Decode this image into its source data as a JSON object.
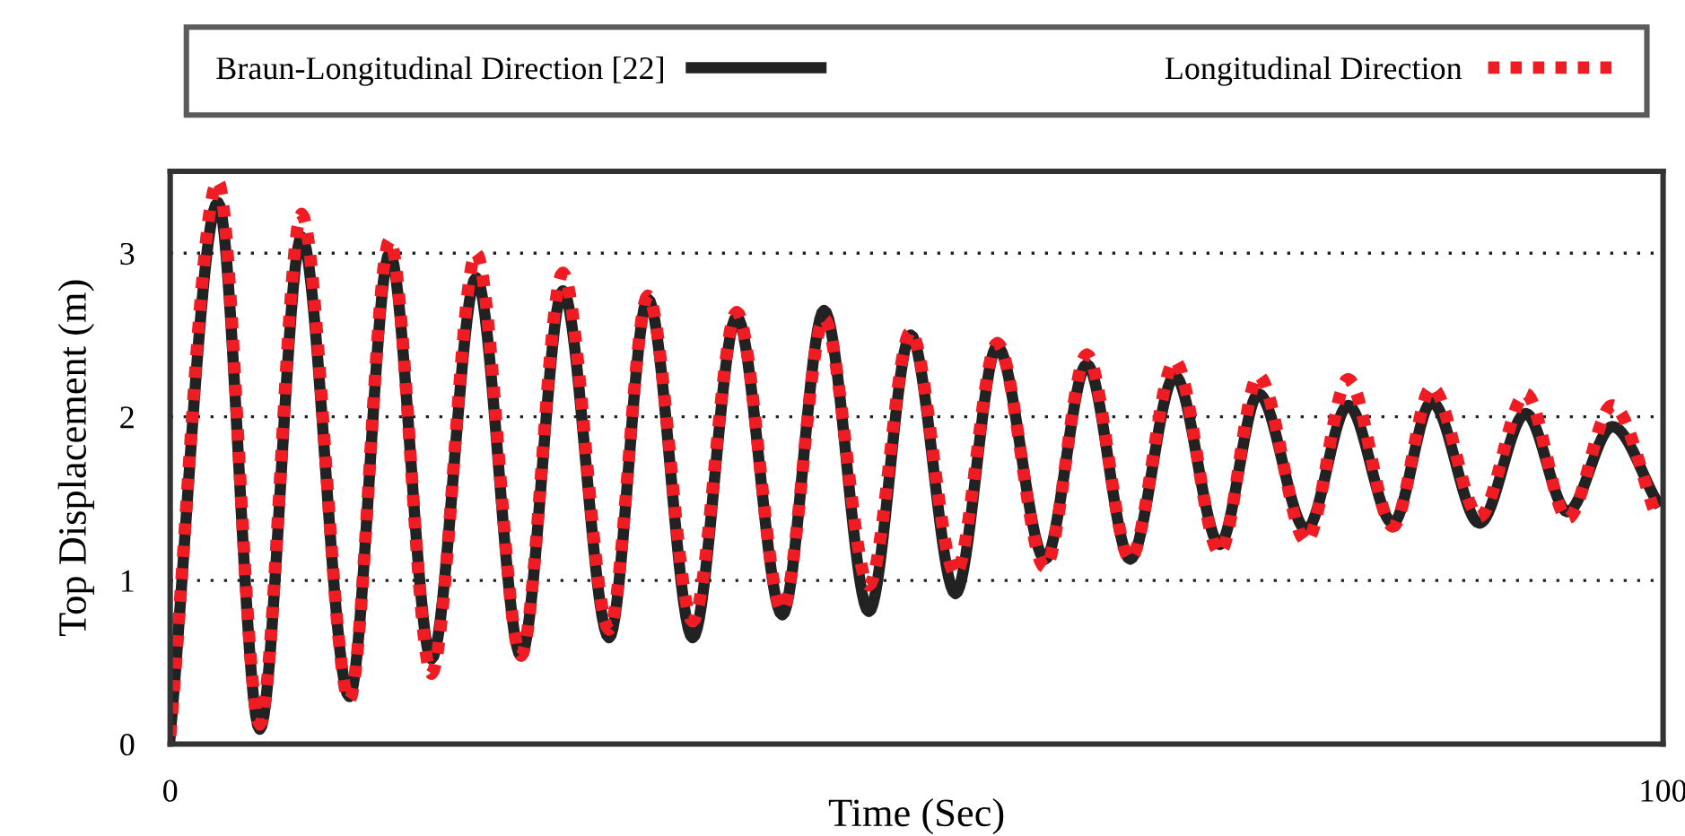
{
  "chart_data": {
    "type": "line",
    "xlabel": "Time (Sec)",
    "ylabel": "Top Displacement (m)",
    "x": [
      0,
      3.2,
      6.0,
      8.8,
      12.0,
      14.7,
      17.5,
      20.5,
      23.5,
      26.3,
      29.4,
      32.0,
      35.0,
      37.95,
      41.0,
      43.8,
      46.8,
      49.6,
      52.6,
      55.4,
      58.6,
      61.4,
      64.3,
      67.3,
      70.3,
      72.9,
      76.1,
      78.9,
      81.9,
      84.5,
      87.7,
      90.8,
      93.6,
      96.6,
      99.6
    ],
    "series": [
      {
        "name": "Braun-Longitudinal Direction [22]",
        "color": "#222222",
        "line_style": "solid",
        "values": [
          0.05,
          3.31,
          0.09,
          3.1,
          0.29,
          3.0,
          0.52,
          2.85,
          0.54,
          2.77,
          0.65,
          2.72,
          0.65,
          2.61,
          0.79,
          2.65,
          0.81,
          2.5,
          0.92,
          2.43,
          1.13,
          2.32,
          1.13,
          2.25,
          1.22,
          2.14,
          1.31,
          2.07,
          1.35,
          2.09,
          1.35,
          2.02,
          1.42,
          1.94,
          1.48
        ]
      },
      {
        "name": "Longitudinal Direction",
        "color": "#f01c24",
        "line_style": "dotted",
        "values": [
          0.05,
          3.44,
          0.12,
          3.24,
          0.27,
          3.08,
          0.43,
          3.0,
          0.54,
          2.88,
          0.7,
          2.74,
          0.75,
          2.64,
          0.82,
          2.6,
          0.97,
          2.52,
          1.04,
          2.45,
          1.08,
          2.38,
          1.13,
          2.34,
          1.17,
          2.25,
          1.24,
          2.23,
          1.33,
          2.18,
          1.39,
          2.14,
          1.38,
          2.07,
          1.38
        ]
      }
    ],
    "xlim": [
      0,
      100
    ],
    "xticks": [
      0,
      100
    ],
    "ylim": [
      0,
      3.5
    ],
    "yticks": [
      0,
      1,
      2,
      3
    ],
    "grid": "y",
    "legend": "top"
  }
}
